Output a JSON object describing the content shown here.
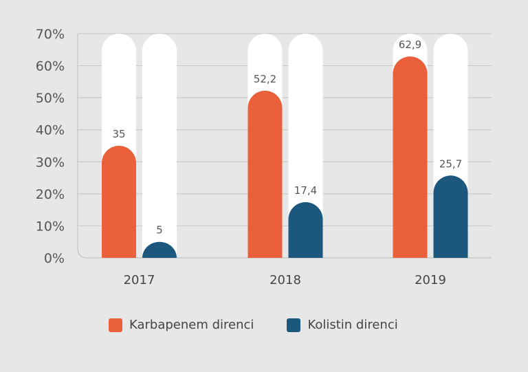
{
  "chart_data": {
    "type": "bar",
    "title": "",
    "xlabel": "",
    "ylabel": "",
    "categories": [
      "2017",
      "2018",
      "2019"
    ],
    "series": [
      {
        "name": "Karbapenem direnci",
        "values": [
          35,
          52.2,
          62.9
        ],
        "labels": [
          "35",
          "52,2",
          "62,9"
        ],
        "color": "#e9603a"
      },
      {
        "name": "Kolistin direnci",
        "values": [
          5,
          17.4,
          25.7
        ],
        "labels": [
          "5",
          "17,4",
          "25,7"
        ],
        "color": "#1c577d"
      }
    ],
    "ylim": [
      0,
      70
    ],
    "yticks": [
      "0%",
      "10%",
      "20%",
      "30%",
      "40%",
      "50%",
      "60%",
      "70%"
    ],
    "grid": true,
    "legend": "bottom-center",
    "background_bar_color": "#ffffff"
  }
}
